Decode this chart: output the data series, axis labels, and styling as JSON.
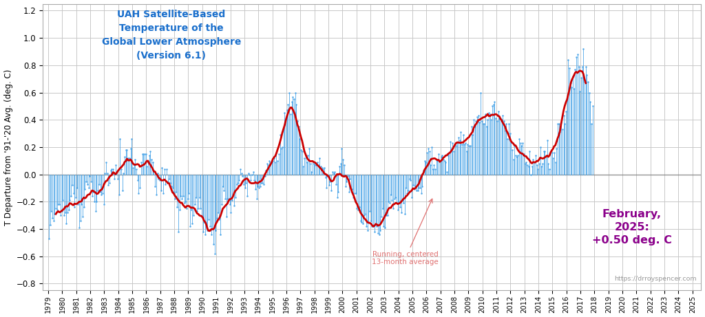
{
  "title_lines": [
    "UAH Satellite-Based",
    "Temperature of the",
    "Global Lower Atmosphere",
    "(Version 6.1)"
  ],
  "title_color": "#1a6fcc",
  "ylabel": "T Departure from '91-'20 Avg. (deg. C)",
  "ylim": [
    -0.85,
    1.25
  ],
  "yticks": [
    -0.8,
    -0.6,
    -0.4,
    -0.2,
    0.0,
    0.2,
    0.4,
    0.6,
    0.8,
    1.0,
    1.2
  ],
  "annotation_text": "Running, centered\n13-month average",
  "annotation_color": "#e07070",
  "feb2025_text": "February,\n2025:\n+0.50 deg. C",
  "feb2025_color": "#8b008b",
  "website_text": "https://drroyspencer.com",
  "line_color": "#4da6e8",
  "smooth_color": "#cc0000",
  "background_color": "#ffffff",
  "grid_color": "#c8c8c8",
  "start_year": 1979,
  "start_month": 1,
  "monthly_data": [
    -0.47,
    -0.37,
    -0.27,
    -0.32,
    -0.34,
    -0.29,
    -0.25,
    -0.26,
    -0.22,
    -0.22,
    -0.3,
    -0.27,
    -0.19,
    -0.3,
    -0.28,
    -0.36,
    -0.28,
    -0.26,
    -0.19,
    -0.16,
    -0.08,
    -0.14,
    -0.24,
    -0.17,
    -0.1,
    -0.22,
    -0.39,
    -0.34,
    -0.22,
    -0.31,
    -0.24,
    -0.11,
    -0.05,
    -0.07,
    -0.1,
    -0.01,
    -0.05,
    -0.16,
    -0.13,
    -0.2,
    -0.27,
    -0.2,
    -0.12,
    -0.07,
    -0.13,
    -0.15,
    -0.14,
    -0.22,
    0.01,
    0.09,
    0.01,
    -0.08,
    -0.06,
    0.03,
    0.04,
    0.04,
    -0.03,
    0.07,
    0.01,
    -0.03,
    -0.15,
    0.26,
    0.04,
    -0.12,
    0.01,
    0.13,
    0.18,
    0.18,
    0.12,
    0.12,
    0.19,
    0.26,
    0.05,
    0.07,
    0.11,
    0.04,
    -0.04,
    -0.14,
    -0.1,
    0.09,
    0.15,
    0.15,
    0.15,
    0.15,
    0.06,
    0.09,
    0.14,
    0.17,
    0.11,
    0.09,
    0.03,
    -0.09,
    -0.15,
    0.01,
    -0.03,
    -0.04,
    -0.12,
    0.05,
    -0.14,
    0.04,
    -0.07,
    0.04,
    -0.05,
    -0.03,
    -0.06,
    -0.09,
    -0.1,
    -0.13,
    -0.18,
    -0.13,
    -0.24,
    -0.42,
    -0.26,
    -0.16,
    -0.18,
    -0.16,
    -0.21,
    -0.2,
    -0.25,
    -0.18,
    -0.14,
    -0.38,
    -0.26,
    -0.36,
    -0.3,
    -0.22,
    -0.17,
    -0.27,
    -0.25,
    -0.17,
    -0.25,
    -0.31,
    -0.42,
    -0.35,
    -0.44,
    -0.39,
    -0.41,
    -0.33,
    -0.38,
    -0.44,
    -0.4,
    -0.51,
    -0.58,
    -0.41,
    -0.32,
    -0.28,
    -0.33,
    -0.44,
    -0.22,
    -0.09,
    -0.12,
    -0.18,
    -0.31,
    -0.18,
    -0.18,
    -0.22,
    -0.28,
    -0.19,
    -0.15,
    -0.23,
    -0.17,
    -0.07,
    -0.06,
    -0.04,
    0.04,
    0.01,
    -0.01,
    -0.07,
    -0.1,
    -0.06,
    -0.16,
    0.01,
    0.0,
    -0.04,
    0.0,
    0.02,
    -0.04,
    -0.11,
    -0.18,
    -0.09,
    -0.1,
    -0.09,
    -0.06,
    -0.06,
    -0.07,
    -0.01,
    0.03,
    0.08,
    0.07,
    0.1,
    0.09,
    0.09,
    0.1,
    0.12,
    0.09,
    0.16,
    0.1,
    0.15,
    0.29,
    0.19,
    0.2,
    0.34,
    0.45,
    0.4,
    0.47,
    0.51,
    0.6,
    0.44,
    0.53,
    0.57,
    0.55,
    0.6,
    0.51,
    0.39,
    0.35,
    0.26,
    0.18,
    0.17,
    0.06,
    0.12,
    0.14,
    0.09,
    0.14,
    0.19,
    0.08,
    0.02,
    0.1,
    0.08,
    0.07,
    0.07,
    0.09,
    0.07,
    0.12,
    0.06,
    0.05,
    0.04,
    0.05,
    -0.02,
    -0.1,
    -0.01,
    -0.08,
    -0.05,
    -0.12,
    0.02,
    0.01,
    0.02,
    -0.07,
    -0.17,
    -0.13,
    0.06,
    0.08,
    0.19,
    0.11,
    0.07,
    -0.09,
    -0.05,
    -0.01,
    -0.13,
    -0.03,
    -0.11,
    -0.11,
    -0.17,
    -0.14,
    -0.14,
    -0.25,
    -0.26,
    -0.24,
    -0.34,
    -0.35,
    -0.36,
    -0.3,
    -0.29,
    -0.38,
    -0.41,
    -0.35,
    -0.27,
    -0.34,
    -0.38,
    -0.38,
    -0.42,
    -0.37,
    -0.38,
    -0.43,
    -0.44,
    -0.41,
    -0.31,
    -0.25,
    -0.38,
    -0.39,
    -0.3,
    -0.3,
    -0.2,
    -0.21,
    -0.15,
    -0.19,
    -0.25,
    -0.18,
    -0.17,
    -0.21,
    -0.26,
    -0.2,
    -0.24,
    -0.28,
    -0.19,
    -0.21,
    -0.29,
    -0.1,
    -0.14,
    -0.12,
    -0.03,
    -0.04,
    -0.17,
    -0.08,
    -0.11,
    -0.1,
    -0.12,
    -0.12,
    -0.1,
    -0.1,
    -0.14,
    -0.09,
    0.03,
    0.1,
    0.09,
    0.16,
    0.19,
    0.17,
    0.07,
    0.2,
    0.04,
    0.07,
    0.04,
    0.11,
    0.1,
    0.15,
    0.1,
    0.13,
    0.14,
    0.11,
    0.1,
    0.09,
    0.02,
    0.14,
    0.16,
    0.24,
    0.19,
    0.23,
    0.17,
    0.22,
    0.21,
    0.23,
    0.27,
    0.25,
    0.31,
    0.22,
    0.29,
    0.22,
    0.23,
    0.17,
    0.22,
    0.21,
    0.21,
    0.35,
    0.29,
    0.4,
    0.35,
    0.39,
    0.42,
    0.43,
    0.38,
    0.6,
    0.39,
    0.37,
    0.37,
    0.44,
    0.35,
    0.4,
    0.45,
    0.44,
    0.4,
    0.5,
    0.51,
    0.53,
    0.41,
    0.39,
    0.46,
    0.41,
    0.41,
    0.4,
    0.43,
    0.39,
    0.32,
    0.37,
    0.26,
    0.37,
    0.3,
    0.24,
    0.18,
    0.11,
    0.21,
    0.14,
    0.13,
    0.14,
    0.26,
    0.23,
    0.21,
    0.23,
    0.15,
    0.08,
    0.09,
    0.07,
    0.06,
    0.17,
    0.0,
    0.06,
    0.11,
    0.09,
    0.14,
    0.07,
    0.04,
    0.08,
    0.2,
    0.06,
    0.08,
    0.17,
    0.17,
    0.13,
    0.25,
    0.08,
    0.04,
    0.17,
    0.16,
    0.12,
    0.16,
    0.09,
    0.19,
    0.37,
    0.37,
    0.31,
    0.38,
    0.33,
    0.43,
    0.37,
    0.46,
    0.56,
    0.84,
    0.78,
    0.67,
    0.64,
    0.72,
    0.63,
    0.77,
    0.86,
    0.88,
    0.79,
    0.61,
    0.71,
    0.79,
    0.92,
    0.68,
    0.79,
    0.73,
    0.68,
    0.6,
    0.53,
    0.37,
    0.5
  ]
}
